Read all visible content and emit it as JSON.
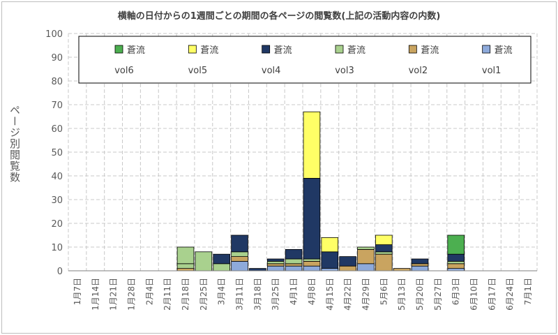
{
  "chart_data": {
    "type": "bar",
    "stacked": true,
    "title": "横軸の日付からの1週間ごとの期間の各ページの閲覧数(上記の活動内容の内数)",
    "ylabel": "ページ別閲覧数",
    "xlabel": "",
    "ylim": [
      0,
      100
    ],
    "yticks": [
      0,
      10,
      20,
      30,
      40,
      50,
      60,
      70,
      80,
      90,
      100
    ],
    "grid": true,
    "legend_position": "top",
    "categories": [
      "1月7日",
      "1月14日",
      "1月21日",
      "1月28日",
      "2月4日",
      "2月11日",
      "2月18日",
      "2月25日",
      "3月4日",
      "3月11日",
      "3月18日",
      "3月25日",
      "4月1日",
      "4月8日",
      "4月15日",
      "4月22日",
      "4月29日",
      "5月6日",
      "5月13日",
      "5月20日",
      "5月27日",
      "6月3日",
      "6月10日",
      "6月17日",
      "6月24日",
      "7月1日"
    ],
    "series": [
      {
        "name": "蒼流 vol1",
        "line1": "蒼流",
        "line2": "vol1",
        "color": "#8eaadb",
        "values": [
          0,
          0,
          0,
          0,
          0,
          0,
          0,
          0,
          0,
          4,
          0,
          2,
          2,
          2,
          1,
          0,
          3,
          0,
          0,
          2,
          0,
          1,
          0,
          0,
          0,
          0
        ]
      },
      {
        "name": "蒼流 vol2",
        "line1": "蒼流",
        "line2": "vol2",
        "color": "#c9a460",
        "values": [
          0,
          0,
          0,
          0,
          0,
          0,
          1,
          0,
          0,
          2,
          0,
          1,
          1,
          2,
          0,
          2,
          6,
          7,
          1,
          1,
          0,
          2,
          0,
          0,
          0,
          0
        ]
      },
      {
        "name": "蒼流 vol3",
        "line1": "蒼流",
        "line2": "vol3",
        "color": "#a9d18e",
        "values": [
          0,
          0,
          0,
          0,
          0,
          0,
          2,
          0,
          3,
          2,
          0,
          1,
          2,
          1,
          0,
          0,
          1,
          1,
          0,
          0,
          0,
          1,
          0,
          0,
          0,
          0
        ]
      },
      {
        "name": "蒼流 vol4",
        "line1": "蒼流",
        "line2": "vol4",
        "color": "#203864",
        "values": [
          0,
          0,
          0,
          0,
          0,
          0,
          0,
          0,
          4,
          7,
          1,
          1,
          4,
          34,
          7,
          4,
          0,
          3,
          0,
          2,
          0,
          3,
          0,
          0,
          0,
          0
        ]
      },
      {
        "name": "蒼流 vol5",
        "line1": "蒼流",
        "line2": "vol5",
        "color": "#ffff66",
        "values": [
          0,
          0,
          0,
          0,
          0,
          0,
          0,
          0,
          0,
          0,
          0,
          0,
          0,
          28,
          6,
          0,
          0,
          4,
          0,
          0,
          0,
          0,
          0,
          0,
          0,
          0
        ]
      },
      {
        "name": "蒼流 vol6",
        "line1": "蒼流",
        "line2": "vol6",
        "color": "#4caf50",
        "values": [
          0,
          0,
          0,
          0,
          0,
          0,
          0,
          0,
          0,
          0,
          0,
          0,
          0,
          0,
          0,
          0,
          0,
          0,
          0,
          0,
          0,
          8,
          0,
          0,
          0,
          0
        ]
      }
    ],
    "extra_segments": [
      {
        "category": "2月18日",
        "base": 3,
        "value": 7,
        "color": "#a9d18e"
      },
      {
        "category": "2月25日",
        "base": 0,
        "value": 8,
        "color": "#a9d18e"
      }
    ],
    "legend_order": [
      "蒼流 vol6",
      "蒼流 vol5",
      "蒼流 vol4",
      "蒼流 vol3",
      "蒼流 vol2",
      "蒼流 vol1"
    ]
  }
}
